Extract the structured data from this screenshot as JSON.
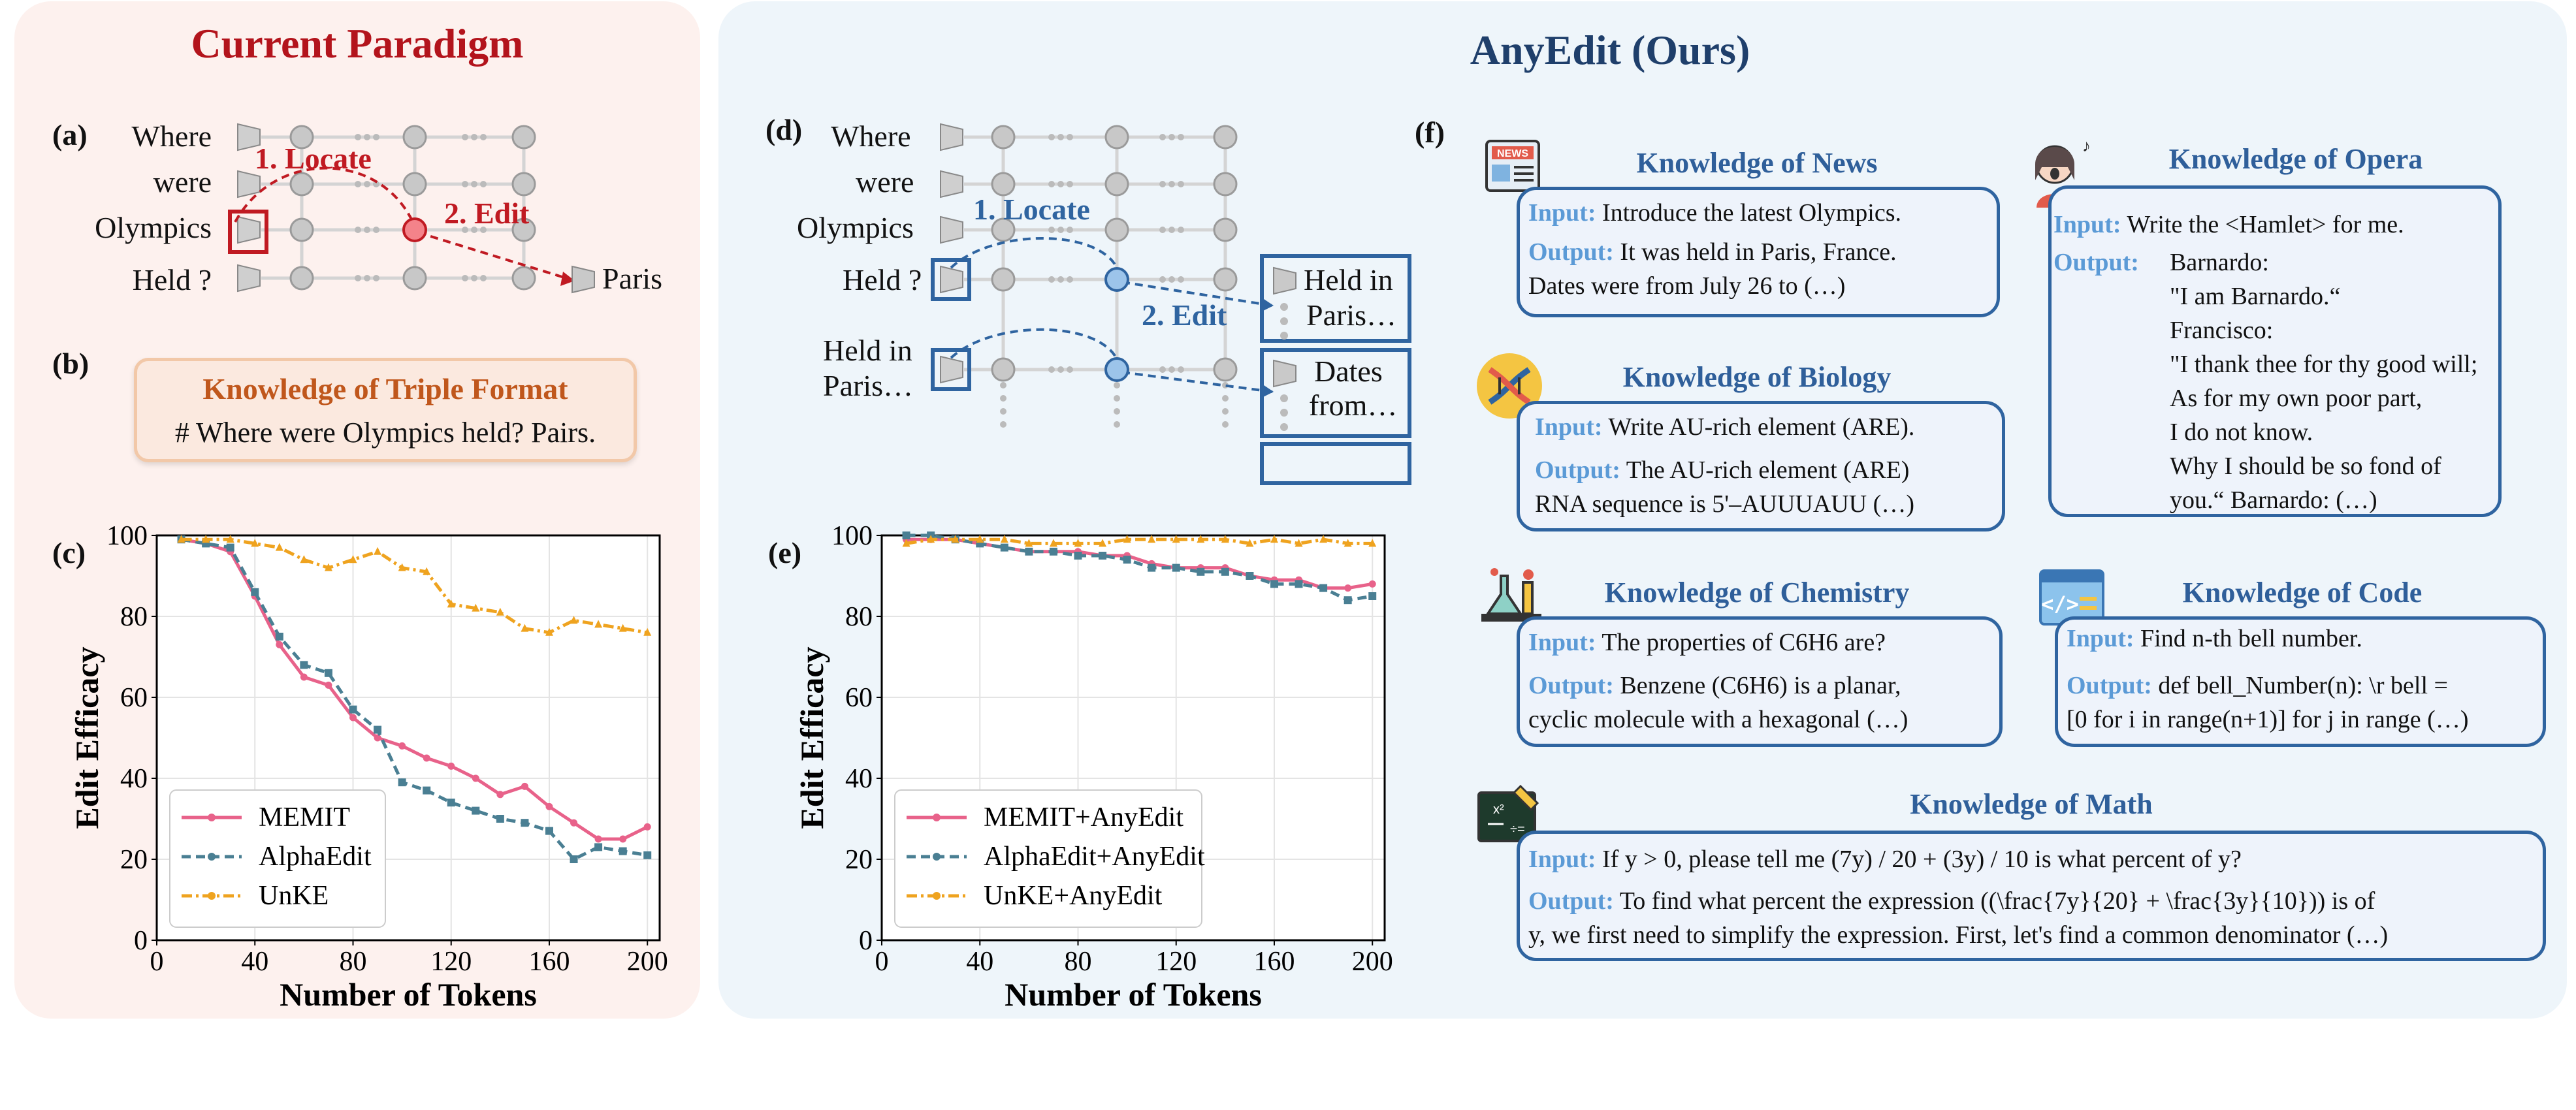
{
  "left": {
    "title": "Current Paradigm",
    "a": {
      "label": "(a)",
      "tokens": [
        "Where",
        "were",
        "Olympics",
        "Held ?"
      ],
      "locate": "1. Locate",
      "edit": "2. Edit",
      "output": "Paris"
    },
    "b": {
      "label": "(b)",
      "box_title": "Knowledge of Triple Format",
      "box_text": "# Where were Olympics held? Pairs."
    },
    "c": {
      "label": "(c)"
    }
  },
  "right": {
    "title": "AnyEdit (Ours)",
    "d": {
      "label": "(d)",
      "tokens": [
        "Where",
        "were",
        "Olympics",
        "Held ?",
        "Held in",
        "Paris…"
      ],
      "locate": "1. Locate",
      "edit": "2. Edit",
      "out1": [
        "Held in",
        "Paris…"
      ],
      "out2": [
        "Dates",
        "from…"
      ]
    },
    "e": {
      "label": "(e)"
    },
    "f": {
      "label": "(f)",
      "news": {
        "title": "Knowledge of News",
        "input_key": "Input:",
        "input": "Introduce the latest Olympics.",
        "output_key": "Output:",
        "output": "It was held in Paris, France.\nDates were from July 26 to (…)"
      },
      "biology": {
        "title": "Knowledge of Biology",
        "input_key": "Input:",
        "input": "Write AU-rich element (ARE).",
        "output_key": "Output:",
        "output": "The AU-rich element (ARE)\nRNA sequence is 5'–AUUUAUU (…)"
      },
      "opera": {
        "title": "Knowledge of Opera",
        "input_key": "Input:",
        "input": "Write the <Hamlet> for me.",
        "output_key": "Output:",
        "output": "Barnardo:\n\"I am Barnardo.“\nFrancisco:\n\"I thank thee for thy good will;\nAs for my own poor part,\nI do not know.\nWhy I should be so fond of\nyou.“ Barnardo: (…)"
      },
      "chemistry": {
        "title": "Knowledge of Chemistry",
        "input_key": "Input:",
        "input": "The properties of C6H6 are?",
        "output_key": "Output:",
        "output": "Benzene (C6H6) is a planar,\ncyclic molecule with a hexagonal (…)"
      },
      "code": {
        "title": "Knowledge of Code",
        "input_key": "Input:",
        "input": "Find n-th bell number.",
        "output_key": "Output:",
        "output": "def bell_Number(n): \\r bell =\n[0 for i in range(n+1)] for j in range (…)"
      },
      "math": {
        "title": "Knowledge of Math",
        "input_key": "Input:",
        "input": "If y > 0, please tell me (7y) / 20 + (3y) / 10 is what percent of y?",
        "output_key": "Output:",
        "output": "To find what percent the expression ((\\frac{7y}{20} + \\frac{3y}{10})) is of\ny, we first need to simplify the expression. First, let's find a common denominator (…)"
      },
      "icons": [
        "newspaper-icon",
        "dna-icon",
        "singer-icon",
        "chemistry-flask-icon",
        "code-window-icon",
        "math-book-icon"
      ]
    }
  },
  "chart_data": [
    {
      "type": "line",
      "xlabel": "Number of Tokens",
      "ylabel": "Edit Efficacy",
      "xlim": [
        0,
        205
      ],
      "ylim": [
        0,
        100
      ],
      "xticks": [
        0,
        40,
        80,
        120,
        160,
        200
      ],
      "yticks": [
        0,
        20,
        40,
        60,
        80,
        100
      ],
      "grid": true,
      "legend": "lower-left",
      "series": [
        {
          "name": "MEMIT",
          "color": "#e8628a",
          "dash": "",
          "marker": "circle",
          "x": [
            10,
            20,
            30,
            40,
            50,
            60,
            70,
            80,
            90,
            100,
            110,
            120,
            130,
            140,
            150,
            160,
            170,
            180,
            190,
            200
          ],
          "y": [
            99,
            98,
            96,
            85,
            73,
            65,
            63,
            55,
            50,
            48,
            45,
            43,
            40,
            36,
            38,
            33,
            29,
            25,
            25,
            28
          ]
        },
        {
          "name": "AlphaEdit",
          "color": "#4a7f93",
          "dash": "14,8",
          "marker": "square",
          "x": [
            10,
            20,
            30,
            40,
            50,
            60,
            70,
            80,
            90,
            100,
            110,
            120,
            130,
            140,
            150,
            160,
            170,
            180,
            190,
            200
          ],
          "y": [
            99,
            98,
            97,
            86,
            75,
            68,
            66,
            57,
            52,
            39,
            37,
            34,
            32,
            30,
            29,
            27,
            20,
            23,
            22,
            21
          ]
        },
        {
          "name": "UnKE",
          "color": "#efa31f",
          "dash": "16,6,4,6",
          "marker": "triangle",
          "x": [
            10,
            20,
            30,
            40,
            50,
            60,
            70,
            80,
            90,
            100,
            110,
            120,
            130,
            140,
            150,
            160,
            170,
            180,
            190,
            200
          ],
          "y": [
            99,
            99,
            99,
            98,
            97,
            94,
            92,
            94,
            96,
            92,
            91,
            83,
            82,
            81,
            77,
            76,
            79,
            78,
            77,
            76
          ]
        }
      ]
    },
    {
      "type": "line",
      "xlabel": "Number of Tokens",
      "ylabel": "Edit Efficacy",
      "xlim": [
        0,
        205
      ],
      "ylim": [
        0,
        100
      ],
      "xticks": [
        0,
        40,
        80,
        120,
        160,
        200
      ],
      "yticks": [
        0,
        20,
        40,
        60,
        80,
        100
      ],
      "grid": true,
      "legend": "lower-left",
      "series": [
        {
          "name": "MEMIT+AnyEdit",
          "color": "#e8628a",
          "dash": "",
          "marker": "circle",
          "x": [
            10,
            20,
            30,
            40,
            50,
            60,
            70,
            80,
            90,
            100,
            110,
            120,
            130,
            140,
            150,
            160,
            170,
            180,
            190,
            200
          ],
          "y": [
            99,
            99,
            99,
            98,
            97,
            96,
            96,
            96,
            95,
            95,
            93,
            92,
            92,
            92,
            90,
            89,
            89,
            87,
            87,
            88
          ]
        },
        {
          "name": "AlphaEdit+AnyEdit",
          "color": "#4a7f93",
          "dash": "14,8",
          "marker": "square",
          "x": [
            10,
            20,
            30,
            40,
            50,
            60,
            70,
            80,
            90,
            100,
            110,
            120,
            130,
            140,
            150,
            160,
            170,
            180,
            190,
            200
          ],
          "y": [
            100,
            100,
            99,
            98,
            97,
            96,
            96,
            95,
            95,
            94,
            92,
            92,
            91,
            91,
            90,
            88,
            88,
            87,
            84,
            85
          ]
        },
        {
          "name": "UnKE+AnyEdit",
          "color": "#efa31f",
          "dash": "16,6,4,6",
          "marker": "triangle",
          "x": [
            10,
            20,
            30,
            40,
            50,
            60,
            70,
            80,
            90,
            100,
            110,
            120,
            130,
            140,
            150,
            160,
            170,
            180,
            190,
            200
          ],
          "y": [
            98,
            99,
            99,
            99,
            99,
            98,
            98,
            98,
            98,
            99,
            99,
            99,
            99,
            99,
            98,
            99,
            98,
            99,
            98,
            98
          ]
        }
      ]
    }
  ]
}
